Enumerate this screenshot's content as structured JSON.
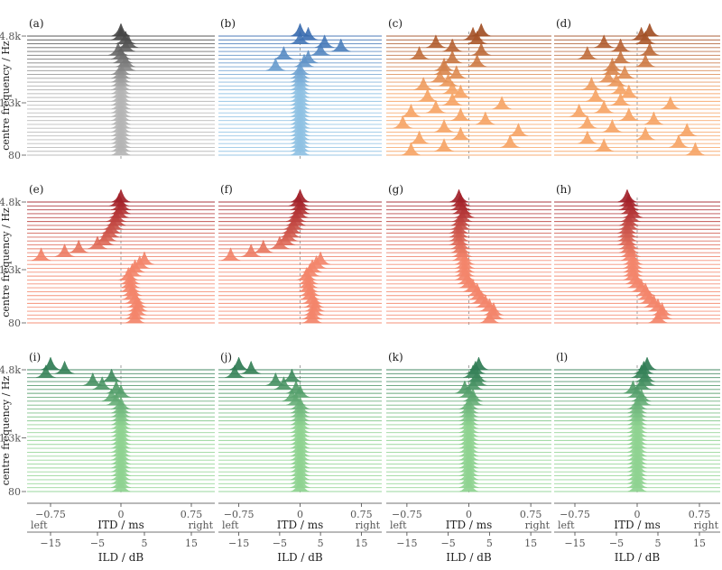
{
  "chart_data": {
    "type": "ridgeline",
    "title": "",
    "ylabel": "centre frequency / Hz",
    "yticks": [
      "14.8k",
      "1.3k",
      "80"
    ],
    "xaxis": {
      "label": "ITD / ms",
      "ticks": [
        "−0.75",
        "0",
        "0.75"
      ],
      "tick_values": [
        -0.75,
        0,
        0.75
      ],
      "left_label": "left",
      "right_label": "right",
      "range": [
        -1.0,
        1.0
      ]
    },
    "x2axis": {
      "label": "ILD / dB",
      "ticks": [
        "−15",
        "−5",
        "5",
        "15"
      ],
      "tick_values": [
        -15,
        -5,
        5,
        15
      ],
      "range": [
        -20,
        20
      ]
    },
    "n_bands": 32,
    "grid": false,
    "rows": [
      {
        "title": "",
        "theme": "grey",
        "panels": [
          {
            "label": "(a)",
            "tag": "",
            "ridges": [
              0.0,
              0.0,
              0.0,
              0.0,
              0.0,
              0.0,
              0.0,
              0.0,
              0.0,
              0.0,
              0.0,
              0.0,
              0.0,
              0.0,
              0.0,
              0.0,
              0.0,
              0.0,
              0.0,
              0.0,
              0.0,
              0.0,
              0.05,
              0.05,
              0.02,
              0.0,
              -0.03,
              0.05,
              0.08,
              0.05,
              0.0,
              0.0
            ]
          },
          {
            "label": "(b)",
            "tag": "",
            "ridges": [
              0.0,
              0.0,
              0.0,
              0.0,
              0.0,
              0.0,
              0.0,
              0.0,
              0.0,
              0.0,
              0.0,
              0.0,
              0.0,
              0.0,
              0.0,
              0.0,
              0.0,
              0.0,
              0.0,
              0.0,
              0.0,
              0.0,
              -0.3,
              0.05,
              0.1,
              -0.2,
              0.25,
              0.5,
              0.3,
              0.0,
              0.1,
              0.0
            ]
          },
          {
            "label": "(c)",
            "tag": "",
            "ridges": [
              -0.7,
              -0.3,
              0.5,
              -0.6,
              -0.1,
              0.6,
              -0.3,
              -0.8,
              0.2,
              -0.1,
              -0.7,
              -0.4,
              0.4,
              -0.2,
              -0.5,
              -0.1,
              -0.2,
              -0.55,
              -0.25,
              -0.35,
              -0.15,
              -0.3,
              -0.3,
              0.1,
              -0.2,
              -0.6,
              0.15,
              -0.2,
              -0.4,
              0.1,
              0.05,
              0.15
            ]
          },
          {
            "label": "(d)",
            "tag": "",
            "ridges": [
              0.7,
              -0.4,
              0.5,
              -0.6,
              0.1,
              0.6,
              -0.3,
              -0.6,
              0.2,
              -0.1,
              -0.7,
              -0.4,
              0.4,
              -0.2,
              -0.5,
              -0.1,
              -0.2,
              -0.55,
              -0.25,
              -0.35,
              -0.15,
              -0.3,
              -0.3,
              0.1,
              -0.2,
              -0.6,
              0.15,
              -0.2,
              -0.4,
              0.1,
              0.05,
              0.15
            ]
          }
        ]
      },
      {
        "title": "",
        "theme": "red",
        "panels": [
          {
            "label": "(e)",
            "tag": "",
            "ridges": [
              0.15,
              0.15,
              0.17,
              0.18,
              0.17,
              0.15,
              0.12,
              0.12,
              0.1,
              0.1,
              0.1,
              0.08,
              0.12,
              0.15,
              0.2,
              0.25,
              -0.85,
              -0.6,
              -0.45,
              -0.25,
              -0.18,
              -0.15,
              -0.12,
              -0.1,
              -0.08,
              -0.05,
              -0.05,
              -0.02,
              0.0,
              0.0,
              -0.02,
              0.0
            ]
          },
          {
            "label": "(f)",
            "tag": "",
            "ridges": [
              0.15,
              0.15,
              0.17,
              0.18,
              0.17,
              0.15,
              0.12,
              0.12,
              0.1,
              0.1,
              0.1,
              0.08,
              0.12,
              0.15,
              0.2,
              0.25,
              -0.85,
              -0.6,
              -0.45,
              -0.25,
              -0.18,
              -0.15,
              -0.12,
              -0.1,
              -0.08,
              -0.05,
              -0.05,
              -0.02,
              0.0,
              0.0,
              -0.02,
              0.0
            ]
          },
          {
            "label": "(g)",
            "tag": "",
            "ridges": [
              0.25,
              0.3,
              0.3,
              0.25,
              0.2,
              0.15,
              0.12,
              0.1,
              0.05,
              0.0,
              -0.02,
              -0.05,
              -0.05,
              -0.05,
              -0.05,
              -0.05,
              -0.08,
              -0.08,
              -0.1,
              -0.1,
              -0.12,
              -0.12,
              -0.12,
              -0.12,
              -0.1,
              -0.1,
              -0.08,
              -0.05,
              -0.08,
              -0.1,
              -0.1,
              -0.12
            ]
          },
          {
            "label": "(h)",
            "tag": "",
            "ridges": [
              0.25,
              0.3,
              0.3,
              0.25,
              0.2,
              0.15,
              0.12,
              0.1,
              0.05,
              0.0,
              -0.02,
              -0.05,
              -0.05,
              -0.05,
              -0.05,
              -0.05,
              -0.08,
              -0.08,
              -0.1,
              -0.1,
              -0.12,
              -0.12,
              -0.12,
              -0.12,
              -0.1,
              -0.1,
              -0.08,
              -0.05,
              -0.08,
              -0.1,
              -0.1,
              -0.12
            ]
          }
        ]
      },
      {
        "title": "",
        "theme": "green",
        "panels": [
          {
            "label": "(i)",
            "tag": "",
            "ridges": [
              0.0,
              0.0,
              0.0,
              0.0,
              0.0,
              0.0,
              0.0,
              0.0,
              0.0,
              0.0,
              0.0,
              0.0,
              0.0,
              0.0,
              0.0,
              0.0,
              0.0,
              0.0,
              0.0,
              0.0,
              0.0,
              0.0,
              -0.05,
              -0.1,
              0.0,
              -0.05,
              -0.2,
              -0.3,
              -0.1,
              -0.8,
              -0.6,
              -0.75
            ]
          },
          {
            "label": "(j)",
            "tag": "",
            "ridges": [
              0.0,
              0.0,
              0.0,
              0.0,
              0.0,
              0.0,
              0.0,
              0.0,
              0.0,
              0.0,
              0.0,
              0.0,
              0.0,
              0.0,
              0.0,
              0.0,
              0.0,
              0.0,
              0.0,
              0.0,
              0.0,
              0.0,
              -0.05,
              -0.1,
              0.0,
              -0.05,
              -0.2,
              -0.3,
              -0.1,
              -0.8,
              -0.6,
              -0.75
            ]
          },
          {
            "label": "(k)",
            "tag": "",
            "ridges": [
              0.0,
              0.0,
              0.0,
              0.0,
              0.0,
              0.0,
              0.0,
              0.0,
              0.0,
              0.0,
              0.0,
              0.0,
              0.0,
              0.0,
              0.0,
              0.0,
              0.0,
              0.0,
              0.0,
              0.0,
              0.0,
              0.0,
              0.05,
              0.05,
              0.0,
              -0.05,
              0.05,
              0.1,
              0.1,
              0.05,
              0.08,
              0.12
            ]
          },
          {
            "label": "(l)",
            "tag": "",
            "ridges": [
              0.0,
              0.0,
              0.0,
              0.0,
              0.0,
              0.0,
              0.0,
              0.0,
              0.0,
              0.0,
              0.0,
              0.0,
              0.0,
              0.0,
              0.0,
              0.0,
              0.0,
              0.0,
              0.0,
              0.0,
              0.0,
              0.0,
              0.05,
              0.05,
              0.0,
              -0.05,
              0.05,
              0.1,
              0.1,
              0.05,
              0.08,
              0.12
            ]
          }
        ]
      }
    ],
    "colors": {
      "grey": {
        "low": "#b5b5b5",
        "high": "#3d3d3d"
      },
      "blue": {
        "low": "#8fc1e3",
        "high": "#3567ad"
      },
      "orange": {
        "low": "#f6a567",
        "high": "#9c4a22"
      },
      "red": {
        "low": "#f3866b",
        "high": "#9d1b26"
      },
      "green": {
        "low": "#8fd391",
        "high": "#2a7651"
      }
    }
  }
}
